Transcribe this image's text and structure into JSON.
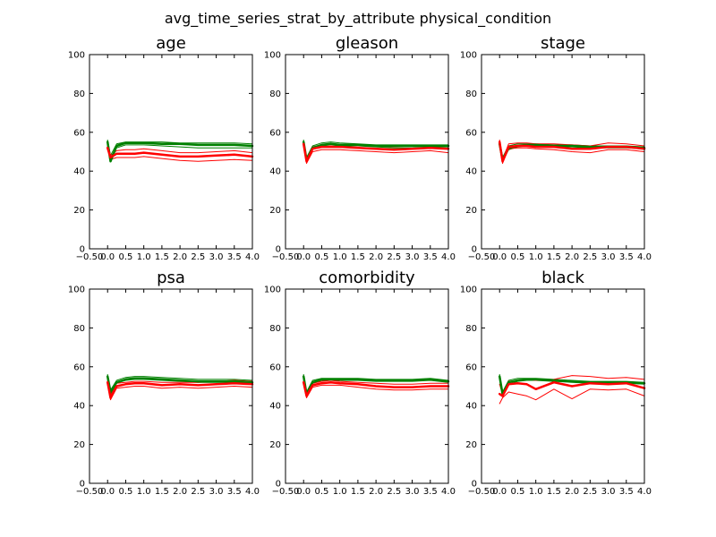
{
  "suptitle": "avg_time_series_strat_by_attribute physical_condition",
  "chart_data": [
    {
      "type": "line",
      "title": "age",
      "xlim": [
        -0.5,
        4.0
      ],
      "ylim": [
        0,
        100
      ],
      "xticks": [
        "−0.50",
        "0.0",
        "0.5",
        "1.0",
        "1.5",
        "2.0",
        "2.5",
        "3.0",
        "3.5",
        "4.0"
      ],
      "yticks": [
        "0",
        "20",
        "40",
        "60",
        "80",
        "100"
      ],
      "grid": false,
      "x": [
        0,
        0.08,
        0.25,
        0.5,
        0.75,
        1.0,
        1.5,
        2.0,
        2.5,
        3.0,
        3.5,
        4.0
      ],
      "series": [
        {
          "color": "#008000",
          "width": 2.5,
          "values": [
            55,
            45,
            53,
            54.5,
            54.5,
            54.5,
            54,
            54,
            53.5,
            53.5,
            53.5,
            53
          ]
        },
        {
          "color": "#008000",
          "width": 1,
          "values": [
            54,
            46,
            52,
            53.5,
            53.5,
            53.5,
            53,
            52.5,
            52,
            52,
            52,
            52
          ]
        },
        {
          "color": "#008000",
          "width": 1,
          "values": [
            56,
            48,
            54,
            55,
            55,
            55,
            55,
            54.5,
            54.5,
            54.5,
            54.5,
            54
          ]
        },
        {
          "color": "#ff0000",
          "width": 2.5,
          "values": [
            52,
            47,
            49,
            49,
            49,
            49.5,
            48.5,
            47.5,
            47.5,
            48,
            48.5,
            47.5
          ]
        },
        {
          "color": "#ff0000",
          "width": 1,
          "values": [
            51,
            46,
            47,
            47,
            47,
            47.5,
            46.5,
            45.5,
            45,
            45.5,
            46,
            45.5
          ]
        },
        {
          "color": "#ff0000",
          "width": 1,
          "values": [
            53,
            48,
            50.5,
            51,
            51,
            51.5,
            50.5,
            49.5,
            49.5,
            50,
            50.5,
            49.5
          ]
        }
      ]
    },
    {
      "type": "line",
      "title": "gleason",
      "xlim": [
        -0.5,
        4.0
      ],
      "ylim": [
        0,
        100
      ],
      "xticks": [
        "−0.50",
        "0.0",
        "0.5",
        "1.0",
        "1.5",
        "2.0",
        "2.5",
        "3.0",
        "3.5",
        "4.0"
      ],
      "yticks": [
        "0",
        "20",
        "40",
        "60",
        "80",
        "100"
      ],
      "grid": false,
      "x": [
        0,
        0.08,
        0.25,
        0.5,
        0.75,
        1.0,
        1.5,
        2.0,
        2.5,
        3.0,
        3.5,
        4.0
      ],
      "series": [
        {
          "color": "#008000",
          "width": 2.5,
          "values": [
            55,
            46,
            52,
            53.5,
            54,
            53.5,
            53.5,
            53,
            53,
            53,
            53,
            53
          ]
        },
        {
          "color": "#008000",
          "width": 1,
          "values": [
            54,
            46,
            51.5,
            53,
            53.5,
            53,
            53,
            52.5,
            52,
            52,
            52.5,
            52.5
          ]
        },
        {
          "color": "#008000",
          "width": 1,
          "values": [
            56,
            47,
            53,
            54.5,
            55,
            54.5,
            54,
            53.5,
            53.5,
            53.5,
            53.5,
            53.5
          ]
        },
        {
          "color": "#ff0000",
          "width": 2.5,
          "values": [
            54,
            45,
            51.5,
            52.5,
            52.5,
            52.5,
            52,
            51.5,
            51,
            51.5,
            52,
            51.5
          ]
        },
        {
          "color": "#ff0000",
          "width": 1,
          "values": [
            53,
            44,
            50,
            51,
            51,
            51,
            50.5,
            50,
            49.5,
            50,
            50.5,
            49.5
          ]
        },
        {
          "color": "#ff0000",
          "width": 1,
          "values": [
            55,
            46,
            52.5,
            53.5,
            53.5,
            53.5,
            53,
            53,
            52.5,
            53,
            53,
            53
          ]
        }
      ]
    },
    {
      "type": "line",
      "title": "stage",
      "xlim": [
        -0.5,
        4.0
      ],
      "ylim": [
        0,
        100
      ],
      "xticks": [
        "−0.50",
        "0.0",
        "0.5",
        "1.0",
        "1.5",
        "2.0",
        "2.5",
        "3.0",
        "3.5",
        "4.0"
      ],
      "yticks": [
        "0",
        "20",
        "40",
        "60",
        "80",
        "100"
      ],
      "grid": false,
      "x": [
        0,
        0.08,
        0.25,
        0.5,
        0.75,
        1.0,
        1.5,
        2.0,
        2.5,
        3.0,
        3.5,
        4.0
      ],
      "series": [
        {
          "color": "#008000",
          "width": 2.5,
          "values": [
            54,
            46,
            52,
            53,
            53.5,
            53.5,
            53,
            53,
            52.5,
            52.5,
            52.5,
            52
          ]
        },
        {
          "color": "#008000",
          "width": 1,
          "values": [
            53,
            45,
            51,
            52.5,
            53,
            53,
            52.5,
            52.5,
            52,
            52,
            52,
            51.5
          ]
        },
        {
          "color": "#008000",
          "width": 1,
          "values": [
            55,
            47,
            53,
            54,
            54,
            54,
            53.5,
            53.5,
            53,
            53,
            53,
            52.5
          ]
        },
        {
          "color": "#ff0000",
          "width": 2.5,
          "values": [
            55,
            45,
            52.5,
            53,
            53,
            52.5,
            52.5,
            51.5,
            51.5,
            52.5,
            52.5,
            51.5
          ]
        },
        {
          "color": "#ff0000",
          "width": 1,
          "values": [
            54,
            44,
            51.5,
            52,
            52,
            51.5,
            51,
            50,
            49.5,
            51,
            51,
            50
          ]
        },
        {
          "color": "#ff0000",
          "width": 1,
          "values": [
            56,
            46,
            54,
            54.5,
            54.5,
            54,
            54,
            53.5,
            53,
            54.5,
            54,
            53
          ]
        }
      ]
    },
    {
      "type": "line",
      "title": "psa",
      "xlim": [
        -0.5,
        4.0
      ],
      "ylim": [
        0,
        100
      ],
      "xticks": [
        "−0.50",
        "0.0",
        "0.5",
        "1.0",
        "1.5",
        "2.0",
        "2.5",
        "3.0",
        "3.5",
        "4.0"
      ],
      "yticks": [
        "0",
        "20",
        "40",
        "60",
        "80",
        "100"
      ],
      "grid": false,
      "x": [
        0,
        0.08,
        0.25,
        0.5,
        0.75,
        1.0,
        1.5,
        2.0,
        2.5,
        3.0,
        3.5,
        4.0
      ],
      "series": [
        {
          "color": "#008000",
          "width": 2.5,
          "values": [
            55,
            47,
            52,
            53.5,
            54,
            54,
            53.5,
            53,
            52.5,
            52.5,
            52.5,
            52
          ]
        },
        {
          "color": "#008000",
          "width": 1,
          "values": [
            54,
            46,
            51.5,
            53,
            53.5,
            53.5,
            53,
            52.5,
            52,
            52,
            52,
            51.5
          ]
        },
        {
          "color": "#008000",
          "width": 1,
          "values": [
            56,
            48,
            53,
            54.5,
            55,
            55,
            54.5,
            54,
            53.5,
            53.5,
            53.5,
            53
          ]
        },
        {
          "color": "#ff0000",
          "width": 2.5,
          "values": [
            52,
            44,
            50,
            51,
            51.5,
            51.5,
            50.5,
            51,
            50.5,
            51,
            51.5,
            51
          ]
        },
        {
          "color": "#ff0000",
          "width": 1,
          "values": [
            51,
            43,
            49,
            49.5,
            50,
            50,
            49,
            49.5,
            49,
            49.5,
            50,
            49.5
          ]
        },
        {
          "color": "#ff0000",
          "width": 1,
          "values": [
            53,
            45,
            51.5,
            52,
            52.5,
            52.5,
            52,
            52,
            52,
            52.5,
            53,
            52.5
          ]
        }
      ]
    },
    {
      "type": "line",
      "title": "comorbidity",
      "xlim": [
        -0.5,
        4.0
      ],
      "ylim": [
        0,
        100
      ],
      "xticks": [
        "−0.50",
        "0.0",
        "0.5",
        "1.0",
        "1.5",
        "2.0",
        "2.5",
        "3.0",
        "3.5",
        "4.0"
      ],
      "yticks": [
        "0",
        "20",
        "40",
        "60",
        "80",
        "100"
      ],
      "grid": false,
      "x": [
        0,
        0.08,
        0.25,
        0.5,
        0.75,
        1.0,
        1.5,
        2.0,
        2.5,
        3.0,
        3.5,
        4.0
      ],
      "series": [
        {
          "color": "#008000",
          "width": 2.5,
          "values": [
            55,
            46,
            52,
            53.5,
            53.5,
            53.5,
            53.5,
            53,
            53,
            53,
            53.5,
            52.5
          ]
        },
        {
          "color": "#008000",
          "width": 1,
          "values": [
            54,
            45,
            51.5,
            53,
            53,
            53,
            53,
            52.5,
            52.5,
            52.5,
            53,
            52
          ]
        },
        {
          "color": "#008000",
          "width": 1,
          "values": [
            56,
            47,
            53,
            54,
            54,
            54,
            54,
            53.5,
            53.5,
            53.5,
            54,
            53
          ]
        },
        {
          "color": "#ff0000",
          "width": 2.5,
          "values": [
            52,
            45,
            50.5,
            51.5,
            52,
            51.5,
            51,
            50,
            49.5,
            49.5,
            50,
            50
          ]
        },
        {
          "color": "#ff0000",
          "width": 1,
          "values": [
            51,
            44,
            49.5,
            50.5,
            50.5,
            50.5,
            49.5,
            48.5,
            48,
            48,
            48.5,
            48.5
          ]
        },
        {
          "color": "#ff0000",
          "width": 1,
          "values": [
            53,
            46,
            51.5,
            52.5,
            53,
            52.5,
            52,
            51.5,
            51,
            51,
            51.5,
            51.5
          ]
        }
      ]
    },
    {
      "type": "line",
      "title": "black",
      "xlim": [
        -0.5,
        4.0
      ],
      "ylim": [
        0,
        100
      ],
      "xticks": [
        "−0.50",
        "0.0",
        "0.5",
        "1.0",
        "1.5",
        "2.0",
        "2.5",
        "3.0",
        "3.5",
        "4.0"
      ],
      "yticks": [
        "0",
        "20",
        "40",
        "60",
        "80",
        "100"
      ],
      "grid": false,
      "x": [
        0,
        0.08,
        0.25,
        0.5,
        0.75,
        1.0,
        1.5,
        2.0,
        2.5,
        3.0,
        3.5,
        4.0
      ],
      "series": [
        {
          "color": "#008000",
          "width": 2.5,
          "values": [
            55,
            46,
            52,
            53,
            53.5,
            53.5,
            53,
            52.5,
            52,
            52,
            52,
            51.5
          ]
        },
        {
          "color": "#008000",
          "width": 1,
          "values": [
            54,
            45,
            51,
            52.5,
            53,
            53,
            52.5,
            52,
            51.5,
            51.5,
            51.5,
            51
          ]
        },
        {
          "color": "#008000",
          "width": 1,
          "values": [
            56,
            47,
            53,
            54,
            54,
            54,
            53.5,
            53,
            52.5,
            52.5,
            52.5,
            52
          ]
        },
        {
          "color": "#ff0000",
          "width": 2.5,
          "values": [
            46,
            45,
            51,
            51.5,
            51,
            48.5,
            52,
            50,
            51.5,
            51,
            51.5,
            49
          ]
        },
        {
          "color": "#ff0000",
          "width": 1,
          "values": [
            41,
            44,
            47,
            46,
            45,
            43,
            48.5,
            43.5,
            48.5,
            48,
            48.5,
            45
          ]
        },
        {
          "color": "#ff0000",
          "width": 1,
          "values": [
            51,
            46,
            52.5,
            53,
            53.5,
            53,
            53.5,
            55.5,
            55,
            54,
            54.5,
            53.5
          ]
        }
      ]
    }
  ]
}
